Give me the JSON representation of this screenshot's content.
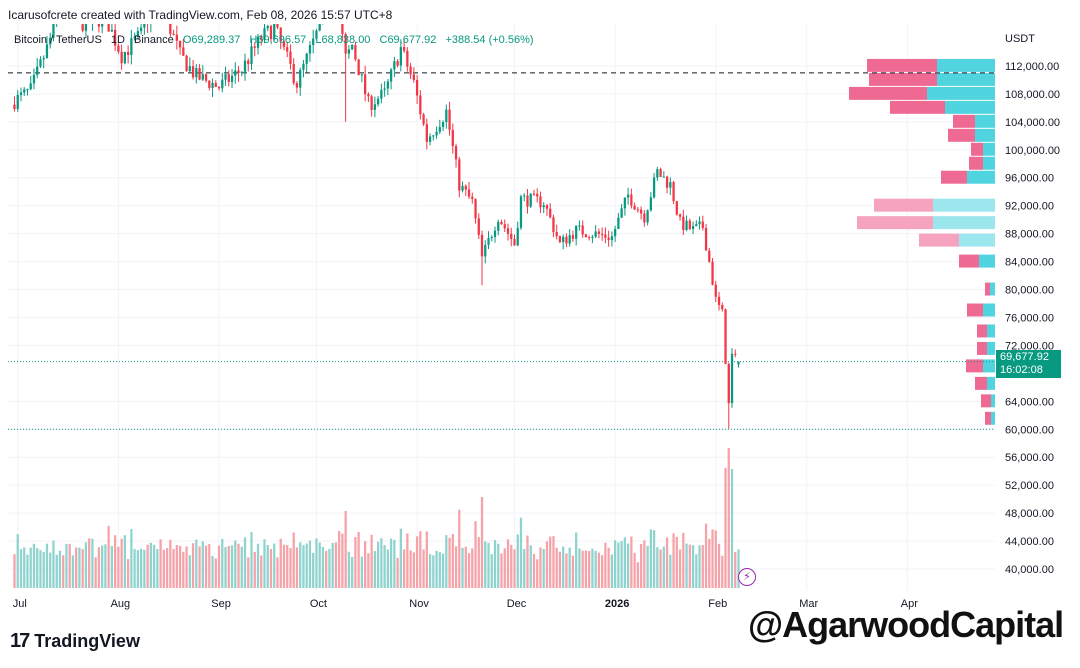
{
  "header": {
    "credit": "Icarusofcrete created with TradingView.com, Feb 08, 2026 15:57 UTC+8",
    "symbol": "Bitcoin / TetherUS",
    "interval": "1D",
    "exchange": "Binance",
    "ohlc": {
      "open": "O69,289.37",
      "high": "H69,696.57",
      "low": "L68,838.00",
      "close": "C69,677.92",
      "change": "+388.54 (+0.56%)"
    }
  },
  "currency": "USDT",
  "last_price": {
    "price": "69,677.92",
    "countdown": "16:02:08"
  },
  "branding": {
    "logo_text": "TradingView",
    "logo_icon": "tradingview-logo-icon",
    "watermark": "@AgarwoodCapital"
  },
  "alert_icon": "lightning-icon",
  "colors": {
    "up": "#089981",
    "down": "#f23645",
    "up_volume": "#8fd3cf",
    "down_volume": "#f5a3a8",
    "vp_up": "#4fd4e0",
    "vp_down": "#ee6a92",
    "vp_up_light": "#9ce6ee",
    "vp_down_light": "#f5a3bf"
  },
  "chart_data": {
    "type": "candlestick",
    "symbol": "Bitcoin / TetherUS",
    "interval": "1D",
    "x_labels": [
      "Jul",
      "Aug",
      "Sep",
      "Oct",
      "Nov",
      "Dec",
      "2026",
      "Feb",
      "Mar",
      "Apr"
    ],
    "y_ticks": [
      112000,
      108000,
      104000,
      100000,
      96000,
      92000,
      88000,
      84000,
      80000,
      76000,
      72000,
      64000,
      60000,
      56000,
      52000,
      48000,
      44000,
      40000
    ],
    "y_range": [
      37000,
      118000
    ],
    "x_range": [
      "2025-06-28",
      "2026-04-28"
    ],
    "last_price": 69677.92,
    "reference_lines": [
      {
        "style": "dashed",
        "value": 111000
      },
      {
        "style": "dotted",
        "value": 69677.92
      },
      {
        "style": "dotted",
        "value": 60000
      }
    ],
    "close_anchors": [
      [
        "2025-06-30",
        107000
      ],
      [
        "2025-07-05",
        108500
      ],
      [
        "2025-07-10",
        114500
      ],
      [
        "2025-07-14",
        120000
      ],
      [
        "2025-07-20",
        118000
      ],
      [
        "2025-07-28",
        119000
      ],
      [
        "2025-08-02",
        113500
      ],
      [
        "2025-08-08",
        116500
      ],
      [
        "2025-08-13",
        122500
      ],
      [
        "2025-08-20",
        113500
      ],
      [
        "2025-08-25",
        110500
      ],
      [
        "2025-09-01",
        109000
      ],
      [
        "2025-09-08",
        111500
      ],
      [
        "2025-09-14",
        116000
      ],
      [
        "2025-09-18",
        117500
      ],
      [
        "2025-09-25",
        109500
      ],
      [
        "2025-10-01",
        116500
      ],
      [
        "2025-10-06",
        124500
      ],
      [
        "2025-10-10",
        113000
      ],
      [
        "2025-10-12",
        115000
      ],
      [
        "2025-10-17",
        106500
      ],
      [
        "2025-10-22",
        108000
      ],
      [
        "2025-10-27",
        114500
      ],
      [
        "2025-10-31",
        109500
      ],
      [
        "2025-11-04",
        101500
      ],
      [
        "2025-11-10",
        105500
      ],
      [
        "2025-11-14",
        95000
      ],
      [
        "2025-11-18",
        92500
      ],
      [
        "2025-11-21",
        84500
      ],
      [
        "2025-11-26",
        90500
      ],
      [
        "2025-12-01",
        86500
      ],
      [
        "2025-12-03",
        93000
      ],
      [
        "2025-12-10",
        92500
      ],
      [
        "2025-12-15",
        86500
      ],
      [
        "2025-12-20",
        88500
      ],
      [
        "2025-12-31",
        87500
      ],
      [
        "2026-01-05",
        93500
      ],
      [
        "2026-01-10",
        90500
      ],
      [
        "2026-01-14",
        96800
      ],
      [
        "2026-01-18",
        95000
      ],
      [
        "2026-01-21",
        89500
      ],
      [
        "2026-01-25",
        88500
      ],
      [
        "2026-01-28",
        89000
      ],
      [
        "2026-01-30",
        84000
      ],
      [
        "2026-02-01",
        78500
      ],
      [
        "2026-02-03",
        76500
      ],
      [
        "2026-02-05",
        63500
      ],
      [
        "2026-02-06",
        70500
      ],
      [
        "2026-02-08",
        69677.92
      ]
    ],
    "volume_profile": [
      {
        "price": 112000,
        "up": 58,
        "down": 70
      },
      {
        "price": 110000,
        "up": 58,
        "down": 68
      },
      {
        "price": 108000,
        "up": 68,
        "down": 78
      },
      {
        "price": 106000,
        "up": 50,
        "down": 55
      },
      {
        "price": 104000,
        "up": 20,
        "down": 22
      },
      {
        "price": 102000,
        "up": 20,
        "down": 27
      },
      {
        "price": 100000,
        "up": 12,
        "down": 12
      },
      {
        "price": 98000,
        "up": 12,
        "down": 14
      },
      {
        "price": 96000,
        "up": 28,
        "down": 26
      },
      {
        "price": 92000,
        "up": 62,
        "down": 59
      },
      {
        "price": 89500,
        "up": 62,
        "down": 76
      },
      {
        "price": 87000,
        "up": 36,
        "down": 40
      },
      {
        "price": 84000,
        "up": 16,
        "down": 20
      },
      {
        "price": 80000,
        "up": 5,
        "down": 5
      },
      {
        "price": 77000,
        "up": 12,
        "down": 16
      },
      {
        "price": 74000,
        "up": 8,
        "down": 10
      },
      {
        "price": 71500,
        "up": 8,
        "down": 10
      },
      {
        "price": 69000,
        "up": 12,
        "down": 17
      },
      {
        "price": 66500,
        "up": 8,
        "down": 12
      },
      {
        "price": 64000,
        "up": 4,
        "down": 10
      },
      {
        "price": 61500,
        "up": 4,
        "down": 6
      }
    ]
  }
}
